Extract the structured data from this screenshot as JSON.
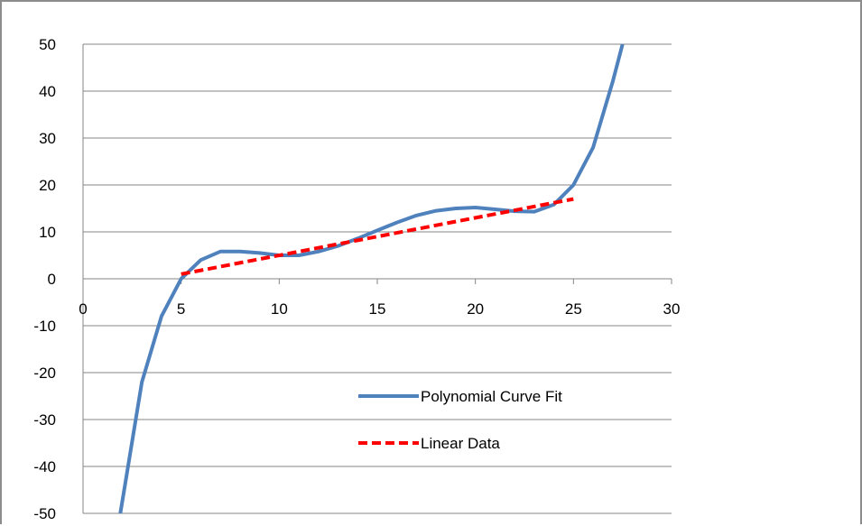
{
  "chart_data": {
    "type": "line",
    "title": "",
    "xlabel": "",
    "ylabel": "",
    "xlim": [
      0,
      30
    ],
    "ylim": [
      -50,
      50
    ],
    "x_ticks": [
      0,
      5,
      10,
      15,
      20,
      25,
      30
    ],
    "y_ticks": [
      50,
      40,
      30,
      20,
      10,
      0,
      -10,
      -20,
      -30,
      -40,
      -50
    ],
    "grid": "horizontal",
    "legend_position": "lower-right",
    "series": [
      {
        "name": "Polynomial Curve Fit",
        "color": "#4f81bd",
        "style": "solid",
        "x": [
          1.9,
          2.1,
          3,
          4,
          5,
          6,
          7,
          8,
          9,
          10,
          11,
          12,
          13,
          14,
          15,
          16,
          17,
          18,
          19,
          20,
          21,
          22,
          23,
          24,
          25,
          26,
          27,
          27.5
        ],
        "y": [
          -50,
          -45,
          -22,
          -8,
          0,
          4,
          5.8,
          5.8,
          5.5,
          5,
          5,
          5.8,
          7,
          8.6,
          10.3,
          12,
          13.5,
          14.5,
          15,
          15.2,
          14.8,
          14.4,
          14.3,
          15.8,
          20,
          28,
          42,
          50
        ]
      },
      {
        "name": "Linear Data",
        "color": "#ff0000",
        "style": "dashed",
        "x": [
          5,
          25
        ],
        "y": [
          1,
          17
        ]
      }
    ]
  }
}
